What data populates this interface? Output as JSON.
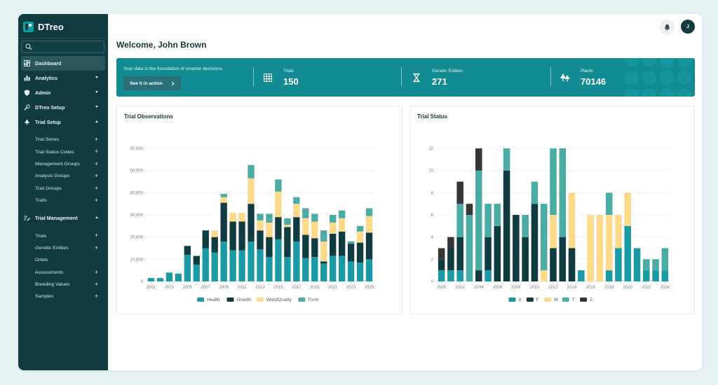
{
  "app": {
    "name": "DTreo"
  },
  "sidebar": {
    "search_placeholder": "",
    "items": [
      {
        "label": "Dashboard",
        "icon": "dashboard-icon",
        "active": true
      },
      {
        "label": "Analytics",
        "icon": "bar-chart-icon",
        "caret": "down"
      },
      {
        "label": "Admin",
        "icon": "shield-icon",
        "caret": "down"
      },
      {
        "label": "DTreo Setup",
        "icon": "wrench-icon",
        "caret": "down"
      },
      {
        "label": "Trial Setup",
        "icon": "tree-icon",
        "caret": "up"
      }
    ],
    "trial_setup_sub": [
      "Trial Series",
      "Trial Status Codes",
      "Management Groups",
      "Analysis Groups",
      "Trait Groups",
      "Traits"
    ],
    "trial_management": {
      "label": "Trial Management",
      "icon": "list-edit-icon",
      "caret": "up"
    },
    "trial_management_sub": [
      {
        "label": "Trials",
        "plus": true
      },
      {
        "label": "Genetic Entities",
        "plus": true
      },
      {
        "label": "Ortets",
        "plus": false
      },
      {
        "label": "Assessments",
        "plus": true
      },
      {
        "label": "Breeding Values",
        "plus": true
      },
      {
        "label": "Samples",
        "plus": true
      }
    ]
  },
  "header": {
    "welcome": "Welcome, John Brown",
    "avatar_initial": "J"
  },
  "banner": {
    "message": "Your data is the foundation of smarter decisions.",
    "button_label": "See it in action",
    "stats": [
      {
        "label": "Trials",
        "value": "150",
        "icon": "grid-icon"
      },
      {
        "label": "Genetic Entities",
        "value": "271",
        "icon": "hourglass-icon"
      },
      {
        "label": "Plants",
        "value": "70146",
        "icon": "trees-icon"
      }
    ]
  },
  "colors": {
    "sidebar": "#0f3b41",
    "banner": "#128b93",
    "health": "#1a9aa5",
    "growth": "#0f3b41",
    "woodquality": "#fdd98a",
    "form": "#4aaca4",
    "A": "#1a9aa5",
    "F": "#0f3b41",
    "M": "#fdd98a",
    "T": "#4aaca4",
    "Z": "#363636"
  },
  "chart_data": [
    {
      "title": "Trial Observations",
      "type": "bar",
      "stacked": true,
      "categories": [
        "2001",
        "2002",
        "2003",
        "2004",
        "2005",
        "2006",
        "2007",
        "2008",
        "2009",
        "2010",
        "2011",
        "2012",
        "2013",
        "2014",
        "2015",
        "2016",
        "2017",
        "2018",
        "2019",
        "2020",
        "2021",
        "2022",
        "2023",
        "2024",
        "2025"
      ],
      "x_tick_labels": [
        "2001",
        "2003",
        "2005",
        "2007",
        "2009",
        "2011",
        "2013",
        "2015",
        "2017",
        "2019",
        "2021",
        "2023",
        "2025"
      ],
      "y_tick_labels": [
        "0",
        "10,000",
        "20,000",
        "30,000",
        "40,000",
        "50,000",
        "60,000"
      ],
      "ylim": [
        0,
        60000
      ],
      "series": [
        {
          "name": "Health",
          "color_key": "health",
          "values": [
            1500,
            1500,
            4000,
            3500,
            12000,
            7500,
            15000,
            13000,
            18000,
            14000,
            14000,
            18000,
            14500,
            11000,
            19000,
            11000,
            18000,
            10500,
            11000,
            8000,
            11500,
            11500,
            9000,
            8500,
            10000
          ]
        },
        {
          "name": "Growth",
          "color_key": "growth",
          "values": [
            0,
            0,
            0,
            0,
            4000,
            4000,
            8000,
            7000,
            17500,
            13000,
            13000,
            17000,
            8500,
            9000,
            10000,
            13500,
            11000,
            10500,
            8500,
            1000,
            10000,
            11000,
            8000,
            9000,
            12000
          ]
        },
        {
          "name": "WoodQuality",
          "color_key": "woodquality",
          "values": [
            0,
            0,
            0,
            0,
            0,
            0,
            0,
            3000,
            2500,
            4000,
            4000,
            11500,
            4500,
            6500,
            11500,
            1000,
            6000,
            7500,
            7500,
            9000,
            5000,
            6000,
            0,
            5000,
            7500
          ]
        },
        {
          "name": "Form",
          "color_key": "form",
          "values": [
            0,
            0,
            0,
            0,
            0,
            0,
            0,
            0,
            1500,
            0,
            0,
            6000,
            3000,
            4000,
            5500,
            3000,
            3000,
            4500,
            3500,
            5000,
            3500,
            3500,
            1000,
            2500,
            3500
          ]
        }
      ]
    },
    {
      "title": "Trial Status",
      "type": "bar",
      "stacked": true,
      "categories": [
        "2000",
        "2001",
        "2002",
        "2003",
        "2004",
        "2005",
        "2006",
        "2007",
        "2008",
        "2009",
        "2010",
        "2011",
        "2012",
        "2013",
        "2014",
        "2015",
        "2016",
        "2017",
        "2018",
        "2019",
        "2020",
        "2021",
        "2022",
        "2023",
        "2024"
      ],
      "x_tick_labels": [
        "2000",
        "2002",
        "2004",
        "2006",
        "2008",
        "2010",
        "2012",
        "2014",
        "2016",
        "2018",
        "2020",
        "2022",
        "2024"
      ],
      "y_tick_labels": [
        "0",
        "2",
        "4",
        "6",
        "8",
        "10",
        "12"
      ],
      "ylim": [
        0,
        12
      ],
      "series": [
        {
          "name": "A",
          "color_key": "A",
          "values": [
            1,
            1,
            1,
            0,
            0,
            1,
            0,
            0,
            0,
            0,
            0,
            0,
            0,
            0,
            0,
            1,
            0,
            0,
            1,
            3,
            5,
            3,
            1,
            1,
            1
          ]
        },
        {
          "name": "F",
          "color_key": "F",
          "values": [
            1,
            2,
            3,
            0,
            1,
            3,
            5,
            10,
            6,
            4,
            7,
            0,
            3,
            4,
            3,
            0,
            0,
            0,
            0,
            0,
            0,
            0,
            0,
            0,
            0
          ]
        },
        {
          "name": "M",
          "color_key": "M",
          "values": [
            0,
            0,
            0,
            0,
            0,
            0,
            0,
            0,
            0,
            0,
            0,
            1,
            3,
            0,
            5,
            0,
            6,
            6,
            5,
            3,
            3,
            0,
            0,
            0,
            0
          ]
        },
        {
          "name": "T",
          "color_key": "T",
          "values": [
            0,
            0,
            3,
            6,
            9,
            3,
            2,
            2,
            0,
            2,
            2,
            6,
            6,
            8,
            0,
            0,
            0,
            0,
            2,
            0,
            0,
            0,
            1,
            1,
            2
          ]
        },
        {
          "name": "Z",
          "color_key": "Z",
          "values": [
            1,
            1,
            2,
            1,
            2,
            0,
            0,
            0,
            0,
            0,
            0,
            0,
            0,
            0,
            0,
            0,
            0,
            0,
            0,
            0,
            0,
            0,
            0,
            0,
            0
          ]
        }
      ]
    }
  ]
}
